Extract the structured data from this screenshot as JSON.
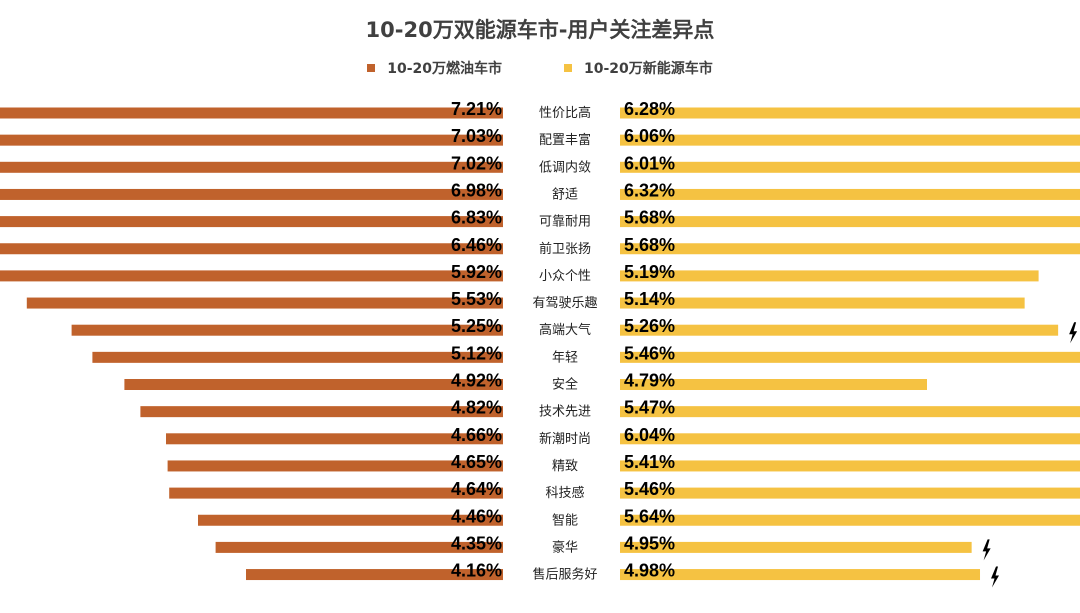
{
  "chart_data": {
    "type": "bar",
    "orientation": "horizontal-butterfly",
    "title": "10-20万双能源车市-用户关注差异点",
    "categories": [
      "性价比高",
      "配置丰富",
      "低调内敛",
      "舒适",
      "可靠耐用",
      "前卫张扬",
      "小众个性",
      "有驾驶乐趣",
      "高端大气",
      "年轻",
      "安全",
      "技术先进",
      "新潮时尚",
      "精致",
      "科技感",
      "智能",
      "豪华",
      "售后服务好"
    ],
    "series": [
      {
        "name": "10-20万燃油车市",
        "color": "#C0622C",
        "side": "left",
        "values": [
          7.21,
          7.03,
          7.02,
          6.98,
          6.83,
          6.46,
          5.92,
          5.53,
          5.25,
          5.12,
          4.92,
          4.82,
          4.66,
          4.65,
          4.64,
          4.46,
          4.35,
          4.16
        ],
        "labels": [
          "7.21%",
          "7.03%",
          "7.02%",
          "6.98%",
          "6.83%",
          "6.46%",
          "5.92%",
          "5.53%",
          "5.25%",
          "5.12%",
          "4.92%",
          "4.82%",
          "4.66%",
          "4.65%",
          "4.64%",
          "4.46%",
          "4.35%",
          "4.16%"
        ]
      },
      {
        "name": "10-20万新能源车市",
        "color": "#F5C242",
        "side": "right",
        "values": [
          6.28,
          6.06,
          6.01,
          6.32,
          5.68,
          5.68,
          5.19,
          5.14,
          5.26,
          5.46,
          4.79,
          5.47,
          6.04,
          5.41,
          5.46,
          5.64,
          4.95,
          4.98
        ],
        "labels": [
          "6.28%",
          "6.06%",
          "6.01%",
          "6.32%",
          "5.68%",
          "5.68%",
          "5.19%",
          "5.14%",
          "5.26%",
          "5.46%",
          "4.79%",
          "5.47%",
          "6.04%",
          "5.41%",
          "5.46%",
          "5.64%",
          "4.95%",
          "4.98%"
        ],
        "highlighted": [
          false,
          false,
          false,
          false,
          false,
          false,
          false,
          false,
          true,
          true,
          false,
          true,
          true,
          true,
          true,
          true,
          true,
          true
        ]
      }
    ],
    "annotation_icon": "lightning-icon",
    "legend_position": "top-center",
    "grid": false
  }
}
